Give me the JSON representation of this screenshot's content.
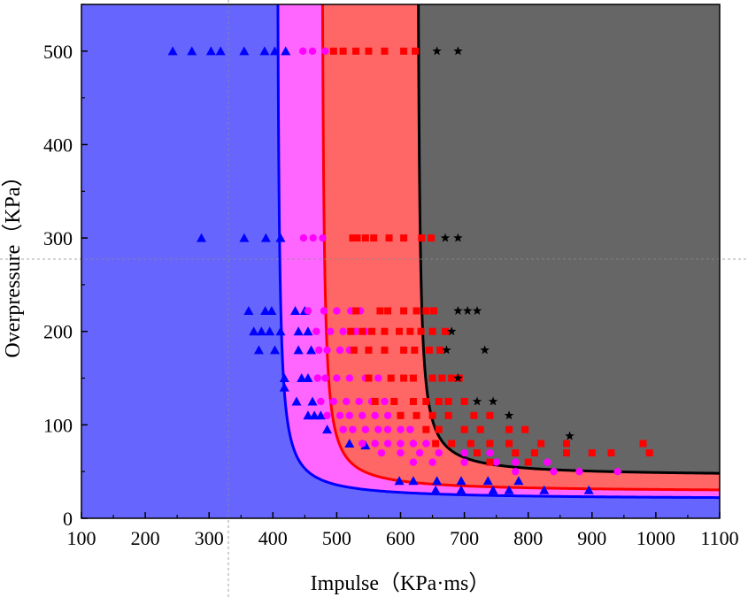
{
  "chart_data": {
    "type": "scatter",
    "xlabel": "Impulse（KPa·ms）",
    "ylabel": "Overpressure（KPa）",
    "xlim": [
      100,
      1100
    ],
    "ylim": [
      0,
      550
    ],
    "xticks": [
      "100",
      "200",
      "300",
      "400",
      "500",
      "600",
      "700",
      "800",
      "900",
      "1000",
      "1100"
    ],
    "yticks": [
      "0",
      "100",
      "200",
      "300",
      "400",
      "500"
    ],
    "grid": false,
    "regions": [
      {
        "color": "#6666ff",
        "curve_color": "#0000ff",
        "curve": {
          "x0": 405,
          "y0": 20
        }
      },
      {
        "color": "#ff66ff",
        "curve_color": "#ff0000",
        "curve": {
          "x0": 475,
          "y0": 28
        }
      },
      {
        "color": "#ff6666",
        "curve_color": "#000000",
        "curve": {
          "x0": 625,
          "y0": 45
        }
      },
      {
        "color": "#666666"
      }
    ],
    "series": [
      {
        "marker": "triangle",
        "color": "#0000ff",
        "points": [
          [
            243,
            500
          ],
          [
            273,
            500
          ],
          [
            303,
            500
          ],
          [
            318,
            500
          ],
          [
            355,
            500
          ],
          [
            387,
            500
          ],
          [
            403,
            500
          ],
          [
            420,
            500
          ],
          [
            288,
            300
          ],
          [
            355,
            300
          ],
          [
            389,
            300
          ],
          [
            412,
            300
          ],
          [
            362,
            222
          ],
          [
            388,
            222
          ],
          [
            398,
            222
          ],
          [
            435,
            222
          ],
          [
            450,
            222
          ],
          [
            370,
            200
          ],
          [
            382,
            200
          ],
          [
            395,
            200
          ],
          [
            412,
            200
          ],
          [
            440,
            200
          ],
          [
            455,
            200
          ],
          [
            378,
            180
          ],
          [
            403,
            180
          ],
          [
            440,
            180
          ],
          [
            460,
            180
          ],
          [
            418,
            150
          ],
          [
            445,
            150
          ],
          [
            455,
            150
          ],
          [
            418,
            140
          ],
          [
            437,
            125
          ],
          [
            462,
            125
          ],
          [
            455,
            110
          ],
          [
            465,
            110
          ],
          [
            475,
            110
          ],
          [
            485,
            95
          ],
          [
            520,
            80
          ],
          [
            545,
            78
          ],
          [
            598,
            40
          ],
          [
            620,
            40
          ],
          [
            657,
            40
          ],
          [
            695,
            40
          ],
          [
            737,
            40
          ],
          [
            785,
            40
          ],
          [
            655,
            30
          ],
          [
            695,
            30
          ],
          [
            745,
            30
          ],
          [
            770,
            30
          ],
          [
            825,
            30
          ],
          [
            895,
            30
          ]
        ]
      },
      {
        "marker": "circle",
        "color": "#ff00ff",
        "points": [
          [
            447,
            500
          ],
          [
            462,
            500
          ],
          [
            482,
            500
          ],
          [
            448,
            300
          ],
          [
            463,
            300
          ],
          [
            478,
            300
          ],
          [
            455,
            222
          ],
          [
            480,
            222
          ],
          [
            500,
            222
          ],
          [
            522,
            222
          ],
          [
            537,
            222
          ],
          [
            468,
            200
          ],
          [
            490,
            200
          ],
          [
            510,
            200
          ],
          [
            530,
            200
          ],
          [
            545,
            200
          ],
          [
            472,
            180
          ],
          [
            485,
            180
          ],
          [
            505,
            180
          ],
          [
            520,
            180
          ],
          [
            470,
            150
          ],
          [
            482,
            150
          ],
          [
            500,
            150
          ],
          [
            520,
            150
          ],
          [
            545,
            150
          ],
          [
            565,
            150
          ],
          [
            475,
            125
          ],
          [
            495,
            125
          ],
          [
            515,
            125
          ],
          [
            535,
            125
          ],
          [
            555,
            125
          ],
          [
            575,
            125
          ],
          [
            485,
            110
          ],
          [
            505,
            110
          ],
          [
            520,
            110
          ],
          [
            540,
            110
          ],
          [
            560,
            110
          ],
          [
            580,
            110
          ],
          [
            600,
            110
          ],
          [
            510,
            95
          ],
          [
            525,
            95
          ],
          [
            545,
            95
          ],
          [
            565,
            95
          ],
          [
            580,
            95
          ],
          [
            600,
            95
          ],
          [
            615,
            95
          ],
          [
            540,
            80
          ],
          [
            560,
            80
          ],
          [
            580,
            80
          ],
          [
            600,
            80
          ],
          [
            620,
            80
          ],
          [
            640,
            80
          ],
          [
            570,
            70
          ],
          [
            600,
            70
          ],
          [
            630,
            70
          ],
          [
            660,
            70
          ],
          [
            700,
            70
          ],
          [
            740,
            70
          ],
          [
            620,
            60
          ],
          [
            650,
            60
          ],
          [
            700,
            60
          ],
          [
            750,
            60
          ],
          [
            780,
            60
          ],
          [
            830,
            60
          ],
          [
            780,
            50
          ],
          [
            840,
            50
          ],
          [
            880,
            50
          ],
          [
            940,
            50
          ]
        ]
      },
      {
        "marker": "square",
        "color": "#ff0000",
        "points": [
          [
            495,
            500
          ],
          [
            510,
            500
          ],
          [
            530,
            500
          ],
          [
            550,
            500
          ],
          [
            575,
            500
          ],
          [
            605,
            500
          ],
          [
            623,
            500
          ],
          [
            525,
            300
          ],
          [
            532,
            300
          ],
          [
            545,
            300
          ],
          [
            558,
            300
          ],
          [
            582,
            300
          ],
          [
            605,
            300
          ],
          [
            633,
            300
          ],
          [
            648,
            300
          ],
          [
            530,
            222
          ],
          [
            568,
            222
          ],
          [
            580,
            222
          ],
          [
            605,
            222
          ],
          [
            625,
            222
          ],
          [
            640,
            222
          ],
          [
            652,
            222
          ],
          [
            522,
            200
          ],
          [
            540,
            200
          ],
          [
            555,
            200
          ],
          [
            575,
            200
          ],
          [
            598,
            200
          ],
          [
            615,
            200
          ],
          [
            632,
            200
          ],
          [
            650,
            200
          ],
          [
            670,
            200
          ],
          [
            527,
            180
          ],
          [
            550,
            180
          ],
          [
            575,
            180
          ],
          [
            605,
            180
          ],
          [
            622,
            180
          ],
          [
            645,
            180
          ],
          [
            662,
            180
          ],
          [
            550,
            150
          ],
          [
            585,
            150
          ],
          [
            605,
            150
          ],
          [
            620,
            150
          ],
          [
            650,
            150
          ],
          [
            665,
            150
          ],
          [
            680,
            150
          ],
          [
            692,
            150
          ],
          [
            560,
            125
          ],
          [
            590,
            125
          ],
          [
            620,
            125
          ],
          [
            640,
            125
          ],
          [
            660,
            125
          ],
          [
            675,
            125
          ],
          [
            700,
            125
          ],
          [
            600,
            110
          ],
          [
            625,
            110
          ],
          [
            650,
            110
          ],
          [
            675,
            110
          ],
          [
            715,
            110
          ],
          [
            740,
            110
          ],
          [
            640,
            95
          ],
          [
            660,
            95
          ],
          [
            700,
            95
          ],
          [
            725,
            95
          ],
          [
            770,
            95
          ],
          [
            795,
            95
          ],
          [
            655,
            80
          ],
          [
            680,
            80
          ],
          [
            710,
            80
          ],
          [
            740,
            80
          ],
          [
            770,
            80
          ],
          [
            820,
            80
          ],
          [
            860,
            80
          ],
          [
            980,
            80
          ],
          [
            720,
            70
          ],
          [
            780,
            70
          ],
          [
            810,
            70
          ],
          [
            860,
            70
          ],
          [
            900,
            70
          ],
          [
            930,
            70
          ],
          [
            990,
            70
          ],
          [
            740,
            60
          ],
          [
            800,
            60
          ]
        ]
      },
      {
        "marker": "star",
        "color": "#000000",
        "points": [
          [
            657,
            500
          ],
          [
            690,
            500
          ],
          [
            670,
            300
          ],
          [
            690,
            300
          ],
          [
            690,
            222
          ],
          [
            705,
            222
          ],
          [
            720,
            222
          ],
          [
            680,
            200
          ],
          [
            672,
            180
          ],
          [
            732,
            180
          ],
          [
            690,
            150
          ],
          [
            720,
            125
          ],
          [
            745,
            125
          ],
          [
            770,
            110
          ],
          [
            865,
            88
          ]
        ]
      }
    ]
  }
}
